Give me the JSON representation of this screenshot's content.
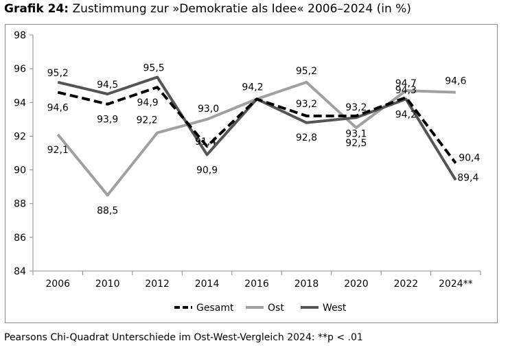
{
  "title": {
    "bold": "Grafik 24:",
    "rest": "Zustimmung zur »Demokratie als Idee« 2006–2024 (in %)"
  },
  "footnote": "Pearsons Chi-Quadrat Unterschiede im Ost-West-Vergleich 2024: **p < .01",
  "chart_data": {
    "type": "line",
    "categories": [
      "2006",
      "2010",
      "2012",
      "2014",
      "2016",
      "2018",
      "2020",
      "2022",
      "2024**"
    ],
    "ylim": [
      84,
      98
    ],
    "yticks": [
      "84",
      "86",
      "88",
      "90",
      "92",
      "94",
      "96",
      "98"
    ],
    "grid": false,
    "legend_position": "bottom",
    "series": [
      {
        "name": "Gesamt",
        "color": "#000000",
        "style": "dashed",
        "values": [
          94.6,
          93.9,
          94.9,
          91.4,
          94.2,
          93.2,
          93.2,
          94.3,
          90.4
        ],
        "labels": [
          "94,6",
          "93,9",
          "94,9",
          "91,4",
          "",
          "93,2",
          "93,2",
          "94,3",
          "90,4"
        ]
      },
      {
        "name": "Ost",
        "color": "#a0a0a0",
        "style": "solid",
        "values": [
          92.1,
          88.5,
          92.2,
          93.0,
          94.2,
          95.2,
          92.5,
          94.7,
          94.6
        ],
        "labels": [
          "92,1",
          "88,5",
          "92,2",
          "93,0",
          "94,2",
          "95,2",
          "92,5",
          "94,7",
          "94,6"
        ]
      },
      {
        "name": "West",
        "color": "#555555",
        "style": "solid",
        "values": [
          95.2,
          94.5,
          95.5,
          90.9,
          94.2,
          92.8,
          93.1,
          94.2,
          89.4
        ],
        "labels": [
          "95,2",
          "94,5",
          "95,5",
          "90,9",
          "",
          "92,8",
          "93,1",
          "94,2",
          "89,4"
        ]
      }
    ]
  }
}
